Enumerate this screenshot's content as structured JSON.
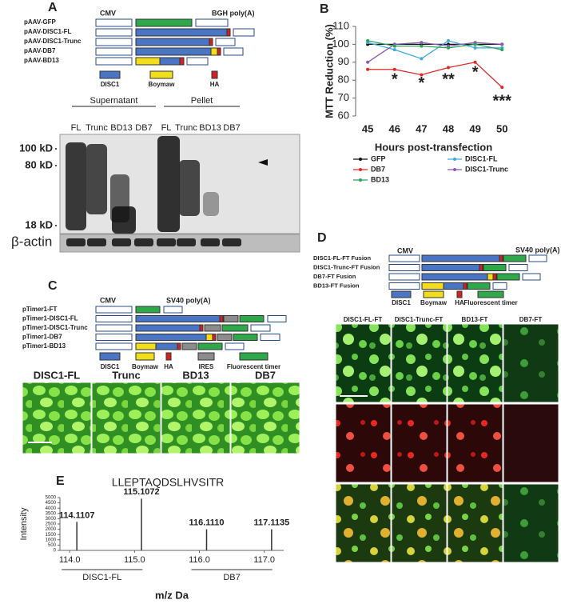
{
  "panel_a": {
    "label": "A",
    "cmv": "CMV",
    "polya": "BGH poly(A)",
    "constructs": [
      "pAAV-GFP",
      "pAAV-DISC1-FL",
      "pAAV-DISC1-Trunc",
      "pAAV-DB7",
      "pAAV-BD13"
    ],
    "legend": [
      "DISC1",
      "Boymaw",
      "HA"
    ],
    "groups": [
      "Supernatant",
      "Pellet"
    ],
    "lanes": [
      "FL",
      "Trunc",
      "BD13",
      "DB7",
      "FL",
      "Trunc",
      "BD13",
      "DB7"
    ],
    "markers": [
      "100 kD",
      "80 kD",
      "18 kD"
    ],
    "loading": "β-actin"
  },
  "panel_c": {
    "label": "C",
    "cmv": "CMV",
    "polya": "SV40 poly(A)",
    "constructs": [
      "pTimer1-FT",
      "pTimer1-DISC1-FL",
      "pTimer1-DISC1-Trunc",
      "pTimer1-DB7",
      "pTimer1-BD13"
    ],
    "legend": [
      "DISC1",
      "Boymaw",
      "HA",
      "IRES",
      "Fluorescent timer"
    ],
    "images": [
      "DISC1-FL",
      "Trunc",
      "BD13",
      "DB7"
    ]
  },
  "panel_d": {
    "label": "D",
    "cmv": "CMV",
    "polya": "SV40 poly(A)",
    "constructs": [
      "DISC1-FL-FT Fusion",
      "DISC1-Trunc-FT Fusion",
      "DB7-FT Fusion",
      "BD13-FT Fusion"
    ],
    "legend": [
      "DISC1",
      "Boymaw",
      "HA",
      "Fluorescent timer"
    ],
    "images": [
      "DISC1-FL-FT",
      "DISC1-Trunc-FT",
      "BD13-FT",
      "DB7-FT"
    ]
  },
  "chart_data": [
    {
      "type": "line",
      "label": "B",
      "y_label": "MTT Reduction (%)",
      "x_label": "Hours post-transfection",
      "x": [
        45,
        46,
        47,
        48,
        49,
        50
      ],
      "xlim": [
        44.55,
        50.35
      ],
      "xticks": [
        45,
        46,
        47,
        48,
        49,
        50
      ],
      "ylim": [
        60,
        110
      ],
      "yticks": [
        60,
        70,
        80,
        90,
        100,
        110
      ],
      "series": [
        {
          "name": "GFP",
          "color": "#111111",
          "values": [
            100,
            100,
            100,
            100,
            100,
            100
          ]
        },
        {
          "name": "DISC1-FL",
          "color": "#3fa9dc",
          "values": [
            101,
            97,
            92,
            102,
            98,
            98
          ]
        },
        {
          "name": "DB7",
          "color": "#e02828",
          "values": [
            86,
            86,
            83,
            87,
            90,
            76
          ]
        },
        {
          "name": "DISC1-Trunc",
          "color": "#8a5bb0",
          "values": [
            90,
            100,
            101,
            99,
            101,
            100
          ]
        },
        {
          "name": "BD13",
          "color": "#2aa25a",
          "values": [
            102,
            99,
            99,
            98,
            100,
            97
          ]
        }
      ],
      "annotations": [
        {
          "text": "*",
          "x": 46,
          "y": 80
        },
        {
          "text": "*",
          "x": 47,
          "y": 78
        },
        {
          "text": "**",
          "x": 48,
          "y": 80
        },
        {
          "text": "*",
          "x": 49,
          "y": 84
        },
        {
          "text": "***",
          "x": 50,
          "y": 68
        }
      ]
    },
    {
      "type": "bar",
      "label": "E",
      "title": "LLEPTAQDSLHVSITR",
      "y_label": "Intensity",
      "x_label": "m/z Da",
      "x": [
        114.1107,
        115.1072,
        116.111,
        117.1135
      ],
      "x_labels": [
        "114.1107",
        "115.1072",
        "116.1110",
        "117.1135"
      ],
      "values": [
        2700,
        4900,
        2000,
        2000
      ],
      "color": "#333333",
      "xlim": [
        113.85,
        117.3
      ],
      "xticks": [
        {
          "value": 114,
          "label": "114.0"
        },
        {
          "value": 115,
          "label": "115.0"
        },
        {
          "value": 116,
          "label": "116.0"
        },
        {
          "value": 117,
          "label": "117.0"
        }
      ],
      "ylim": [
        0,
        5000
      ],
      "yticks": [
        0,
        500,
        1000,
        1500,
        2000,
        2500,
        3000,
        3500,
        4000,
        4500,
        5000
      ],
      "groups": [
        "DISC1-FL",
        "DB7"
      ]
    }
  ]
}
